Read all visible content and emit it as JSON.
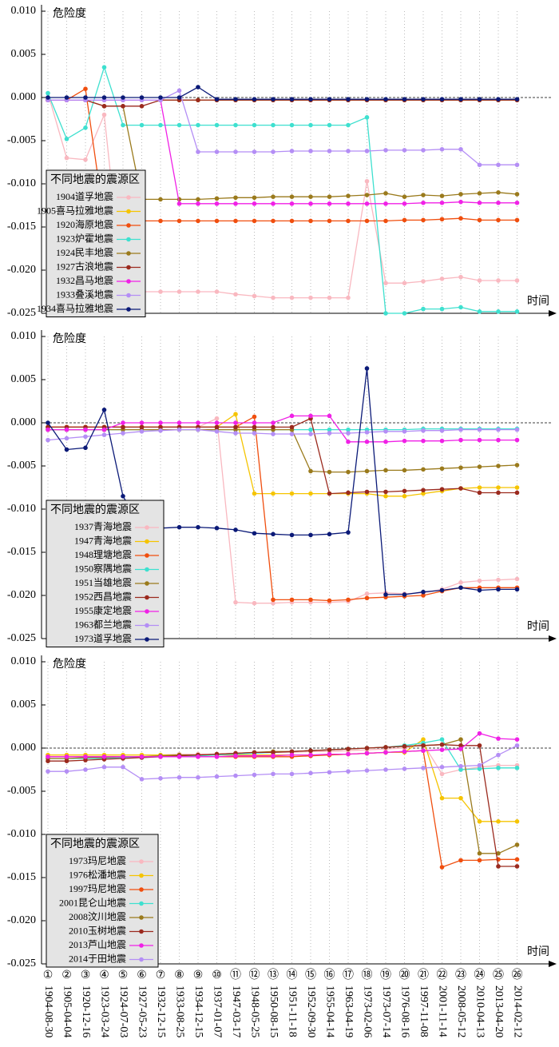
{
  "chart_data": [
    {
      "type": "line",
      "y_label": "危险度",
      "x_label": "时间",
      "legend_title": "不同地震的震源区",
      "ylim": [
        -0.025,
        0.01
      ],
      "yticks": [
        {
          "value": 0.01,
          "label": "0.010"
        },
        0.005,
        {
          "value": 0,
          "label": "0.000"
        },
        -0.005,
        {
          "value": -0.01,
          "label": "-0.010"
        },
        -0.015,
        {
          "value": -0.02,
          "label": "-0.020"
        },
        -0.025
      ],
      "series": [
        {
          "name": "1904道孚地震",
          "color": "#f9b8c0",
          "values": [
            0.0005,
            -0.007,
            -0.0072,
            -0.002,
            -0.0225,
            -0.0225,
            -0.0225,
            -0.0225,
            -0.0225,
            -0.0225,
            -0.0228,
            -0.023,
            -0.0232,
            -0.0232,
            -0.0232,
            -0.0232,
            -0.0232,
            -0.0097,
            -0.0215,
            -0.0215,
            -0.0213,
            -0.021,
            -0.0208,
            -0.0212,
            -0.0212,
            -0.0212
          ]
        },
        {
          "name": "1905喜马拉雅地震",
          "color": "#f5c400",
          "values": [
            -0.0003,
            -0.0003,
            -0.0003,
            -0.0003,
            -0.0003,
            -0.0003,
            -0.0003,
            -0.0003,
            -0.0003,
            -0.0003,
            -0.0003,
            -0.0003,
            -0.0003,
            -0.0003,
            -0.0003,
            -0.0003,
            -0.0003,
            -0.0003,
            -0.0003,
            -0.0003,
            -0.0003,
            -0.0003,
            -0.0003,
            -0.0003,
            -0.0003,
            -0.0003
          ]
        },
        {
          "name": "1920海原地震",
          "color": "#f04e0e",
          "values": [
            -0.0003,
            -0.0003,
            0.001,
            -0.0143,
            -0.0143,
            -0.0143,
            -0.0143,
            -0.0143,
            -0.0143,
            -0.0143,
            -0.0143,
            -0.0143,
            -0.0143,
            -0.0143,
            -0.0143,
            -0.0143,
            -0.0143,
            -0.0143,
            -0.0143,
            -0.0142,
            -0.0142,
            -0.0141,
            -0.014,
            -0.0142,
            -0.0142,
            -0.0142
          ]
        },
        {
          "name": "1923炉霍地震",
          "color": "#3ee0cf",
          "values": [
            0.0005,
            -0.0048,
            -0.0035,
            0.0035,
            -0.0032,
            -0.0032,
            -0.0032,
            -0.0032,
            -0.0032,
            -0.0032,
            -0.0032,
            -0.0032,
            -0.0032,
            -0.0032,
            -0.0032,
            -0.0032,
            -0.0032,
            -0.0023,
            -0.025,
            -0.025,
            -0.0245,
            -0.0245,
            -0.0243,
            -0.0248,
            -0.0248,
            -0.0248
          ]
        },
        {
          "name": "1924民丰地震",
          "color": "#9a7a1c",
          "values": [
            -0.0003,
            -0.0003,
            -0.0003,
            -0.001,
            -0.001,
            -0.0118,
            -0.0118,
            -0.0118,
            -0.0118,
            -0.0117,
            -0.0116,
            -0.0116,
            -0.0115,
            -0.0115,
            -0.0115,
            -0.0115,
            -0.0114,
            -0.0113,
            -0.0111,
            -0.0115,
            -0.0113,
            -0.0114,
            -0.0112,
            -0.0111,
            -0.011,
            -0.0112
          ]
        },
        {
          "name": "1927古浪地震",
          "color": "#9b2a1e",
          "values": [
            -0.0003,
            -0.0003,
            -0.0003,
            -0.001,
            -0.001,
            -0.001,
            -0.0003,
            -0.0003,
            -0.0003,
            -0.0003,
            -0.0003,
            -0.0003,
            -0.0003,
            -0.0003,
            -0.0003,
            -0.0003,
            -0.0003,
            -0.0003,
            -0.0003,
            -0.0003,
            -0.0003,
            -0.0003,
            -0.0003,
            -0.0003,
            -0.0003,
            -0.0003
          ]
        },
        {
          "name": "1932昌马地震",
          "color": "#f021e6",
          "values": [
            -0.0003,
            -0.0003,
            -0.0003,
            -0.0003,
            -0.0003,
            -0.0003,
            -0.0003,
            -0.0123,
            -0.0123,
            -0.0123,
            -0.0123,
            -0.0123,
            -0.0123,
            -0.0123,
            -0.0123,
            -0.0123,
            -0.0123,
            -0.0123,
            -0.0123,
            -0.0123,
            -0.0122,
            -0.0122,
            -0.0121,
            -0.0122,
            -0.0122,
            -0.0122
          ]
        },
        {
          "name": "1933叠溪地震",
          "color": "#b48ef5",
          "values": [
            -0.0003,
            -0.0003,
            -0.0003,
            -0.0003,
            -0.0003,
            -0.0003,
            -0.0003,
            0.0008,
            -0.0063,
            -0.0063,
            -0.0063,
            -0.0063,
            -0.0063,
            -0.0062,
            -0.0062,
            -0.0062,
            -0.0062,
            -0.0062,
            -0.0061,
            -0.0061,
            -0.0061,
            -0.006,
            -0.006,
            -0.0078,
            -0.0078,
            -0.0078
          ]
        },
        {
          "name": "1934喜马拉雅地震",
          "color": "#0b1a78",
          "values": [
            0,
            0,
            0,
            0,
            0,
            0,
            0,
            0,
            0.0012,
            -0.0002,
            -0.0002,
            -0.0002,
            -0.0002,
            -0.0002,
            -0.0002,
            -0.0002,
            -0.0002,
            -0.0002,
            -0.0002,
            -0.0002,
            -0.0002,
            -0.0002,
            -0.0002,
            -0.0002,
            -0.0002,
            -0.0002
          ]
        }
      ]
    },
    {
      "type": "line",
      "y_label": "危险度",
      "x_label": "时间",
      "legend_title": "不同地震的震源区",
      "ylim": [
        -0.025,
        0.01
      ],
      "yticks": [
        {
          "value": 0.01,
          "label": "0.010"
        },
        0.005,
        {
          "value": 0,
          "label": "0.000"
        },
        -0.005,
        {
          "value": -0.01,
          "label": "-0.010"
        },
        -0.015,
        {
          "value": -0.02,
          "label": "-0.020"
        },
        -0.025
      ],
      "series": [
        {
          "name": "1937青海地震",
          "color": "#f9b8c0",
          "values": [
            -0.0005,
            -0.0005,
            -0.0005,
            -0.0005,
            -0.0005,
            -0.0005,
            -0.0005,
            -0.0005,
            -0.0005,
            0.0005,
            -0.0208,
            -0.0209,
            -0.0209,
            -0.0208,
            -0.0208,
            -0.0208,
            -0.0207,
            -0.0198,
            -0.0197,
            -0.0198,
            -0.0197,
            -0.0193,
            -0.0185,
            -0.0183,
            -0.0182,
            -0.0181
          ]
        },
        {
          "name": "1947青海地震",
          "color": "#f5c400",
          "values": [
            -0.0005,
            -0.0005,
            -0.0005,
            -0.0005,
            -0.0005,
            -0.0005,
            -0.0005,
            -0.0005,
            -0.0005,
            -0.0005,
            0.001,
            -0.0082,
            -0.0082,
            -0.0082,
            -0.0082,
            -0.0082,
            -0.0082,
            -0.0082,
            -0.0085,
            -0.0085,
            -0.0082,
            -0.0079,
            -0.0076,
            -0.0075,
            -0.0075,
            -0.0075
          ]
        },
        {
          "name": "1948理塘地震",
          "color": "#f04e0e",
          "values": [
            -0.0005,
            -0.0005,
            -0.0005,
            -0.0005,
            -0.0005,
            -0.0005,
            -0.0005,
            -0.0005,
            -0.0005,
            -0.0005,
            -0.0005,
            0.0007,
            -0.0205,
            -0.0205,
            -0.0205,
            -0.0206,
            -0.0205,
            -0.0203,
            -0.0202,
            -0.0201,
            -0.02,
            -0.0195,
            -0.0191,
            -0.0191,
            -0.0191,
            -0.0191
          ]
        },
        {
          "name": "1950察隅地震",
          "color": "#3ee0cf",
          "values": [
            -0.0008,
            -0.0008,
            -0.0008,
            -0.0008,
            -0.0008,
            -0.0008,
            -0.0008,
            -0.0008,
            -0.0008,
            -0.0008,
            -0.0008,
            -0.0008,
            -0.0008,
            -0.0008,
            -0.0008,
            -0.0008,
            -0.0008,
            -0.0008,
            -0.0008,
            -0.0008,
            -0.0007,
            -0.0007,
            -0.0007,
            -0.0007,
            -0.0007,
            -0.0007
          ]
        },
        {
          "name": "1951当雄地震",
          "color": "#9a7a1c",
          "values": [
            -0.0008,
            -0.0008,
            -0.0008,
            -0.0008,
            -0.0008,
            -0.0008,
            -0.0008,
            -0.0008,
            -0.0008,
            -0.0008,
            -0.0008,
            -0.0008,
            -0.0008,
            -0.0008,
            -0.0056,
            -0.0057,
            -0.0057,
            -0.0056,
            -0.0055,
            -0.0055,
            -0.0054,
            -0.0053,
            -0.0052,
            -0.0051,
            -0.005,
            -0.0049
          ]
        },
        {
          "name": "1952西昌地震",
          "color": "#9b2a1e",
          "values": [
            -0.0005,
            -0.0005,
            -0.0005,
            -0.0005,
            -0.0005,
            -0.0005,
            -0.0005,
            -0.0005,
            -0.0005,
            -0.0005,
            -0.0005,
            -0.0005,
            -0.0005,
            -0.0005,
            0.0005,
            -0.0082,
            -0.0081,
            -0.008,
            -0.008,
            -0.0079,
            -0.0078,
            -0.0077,
            -0.0076,
            -0.0081,
            -0.0081,
            -0.0081
          ]
        },
        {
          "name": "1955康定地震",
          "color": "#f021e6",
          "values": [
            -0.0008,
            -0.0008,
            -0.0008,
            -0.0008,
            0,
            0,
            0,
            0,
            0,
            0,
            0,
            0,
            0,
            0.0008,
            0.0008,
            0.0008,
            -0.0022,
            -0.0022,
            -0.0022,
            -0.0021,
            -0.0021,
            -0.0021,
            -0.002,
            -0.002,
            -0.002,
            -0.002
          ]
        },
        {
          "name": "1963都兰地震",
          "color": "#b48ef5",
          "values": [
            -0.002,
            -0.0018,
            -0.0016,
            -0.0014,
            -0.0012,
            -0.001,
            -0.0009,
            -0.0008,
            -0.0008,
            -0.001,
            -0.0012,
            -0.0012,
            -0.0013,
            -0.0013,
            -0.0013,
            -0.0012,
            -0.0012,
            -0.0011,
            -0.001,
            -0.001,
            -0.0009,
            -0.0009,
            -0.0008,
            -0.0008,
            -0.0008,
            -0.0008
          ]
        },
        {
          "name": "1973道孚地震",
          "color": "#0b1a78",
          "values": [
            0,
            -0.0031,
            -0.0029,
            0.0015,
            -0.0085,
            -0.0122,
            -0.0122,
            -0.0121,
            -0.0121,
            -0.0122,
            -0.0124,
            -0.0128,
            -0.0129,
            -0.013,
            -0.013,
            -0.0129,
            -0.0127,
            0.0063,
            -0.0199,
            -0.0199,
            -0.0196,
            -0.0194,
            -0.0191,
            -0.0194,
            -0.0193,
            -0.0193
          ]
        }
      ]
    },
    {
      "type": "line",
      "y_label": "危险度",
      "x_label": "时间",
      "legend_title": "不同地震的震源区",
      "ylim": [
        -0.025,
        0.01
      ],
      "yticks": [
        {
          "value": 0.01,
          "label": "0.010"
        },
        0.005,
        {
          "value": 0,
          "label": "0.000"
        },
        -0.005,
        {
          "value": -0.01,
          "label": "-0.010"
        },
        -0.015,
        {
          "value": -0.02,
          "label": "-0.020"
        },
        -0.025
      ],
      "category_markers": [
        "①",
        "②",
        "③",
        "④",
        "⑤",
        "⑥",
        "⑦",
        "⑧",
        "⑨",
        "⑩",
        "⑪",
        "⑫",
        "⑬",
        "⑭",
        "⑮",
        "⑯",
        "⑰",
        "⑱",
        "⑲",
        "⑳",
        "㉑",
        "㉒",
        "㉓",
        "㉔",
        "㉕",
        "㉖"
      ],
      "categories": [
        "1904-08-30",
        "1905-04-04",
        "1920-12-16",
        "1923-03-24",
        "1924-07-03",
        "1927-05-23",
        "1932-12-15",
        "1933-08-25",
        "1934-12-15",
        "1937-01-07",
        "1947-03-17",
        "1948-05-25",
        "1950-08-15",
        "1951-11-18",
        "1952-09-30",
        "1955-04-14",
        "1963-04-19",
        "1973-02-06",
        "1973-07-14",
        "1976-08-16",
        "1997-11-08",
        "2001-11-14",
        "2008-05-12",
        "2010-04-13",
        "2013-04-20",
        "2014-02-12"
      ],
      "series": [
        {
          "name": "1973玛尼地震",
          "color": "#f9b8c0",
          "values": [
            -0.0008,
            -0.0008,
            -0.0008,
            -0.0008,
            -0.0008,
            -0.0008,
            -0.0008,
            -0.0007,
            -0.0007,
            -0.0007,
            -0.0006,
            -0.0006,
            -0.0005,
            -0.0005,
            -0.0004,
            -0.0004,
            -0.0003,
            -0.0002,
            -0.0001,
            0,
            0.0005,
            -0.003,
            -0.0025,
            -0.0022,
            -0.002,
            -0.002
          ]
        },
        {
          "name": "1976松潘地震",
          "color": "#f5c400",
          "values": [
            -0.0008,
            -0.0008,
            -0.0008,
            -0.0008,
            -0.0008,
            -0.0008,
            -0.0008,
            -0.0008,
            -0.0008,
            -0.0008,
            -0.0008,
            -0.0008,
            -0.0008,
            -0.0008,
            -0.0008,
            -0.0008,
            -0.0007,
            -0.0006,
            -0.0005,
            -0.0005,
            0.001,
            -0.0058,
            -0.0058,
            -0.0085,
            -0.0085,
            -0.0085
          ]
        },
        {
          "name": "1997玛尼地震",
          "color": "#f04e0e",
          "values": [
            -0.001,
            -0.001,
            -0.001,
            -0.001,
            -0.001,
            -0.001,
            -0.001,
            -0.001,
            -0.001,
            -0.001,
            -0.001,
            -0.001,
            -0.001,
            -0.001,
            -0.0009,
            -0.0008,
            -0.0007,
            -0.0006,
            -0.0005,
            -0.0004,
            -0.0003,
            -0.0138,
            -0.013,
            -0.013,
            -0.0129,
            -0.0129
          ]
        },
        {
          "name": "2001昆仑山地震",
          "color": "#3ee0cf",
          "values": [
            -0.0012,
            -0.0012,
            -0.0012,
            -0.0012,
            -0.0011,
            -0.0011,
            -0.001,
            -0.001,
            -0.0009,
            -0.0008,
            -0.0007,
            -0.0006,
            -0.0005,
            -0.0004,
            -0.0003,
            -0.0002,
            -0.0001,
            0,
            0.0001,
            0.0003,
            0.0006,
            0.001,
            -0.0025,
            -0.0024,
            -0.0023,
            -0.0023
          ]
        },
        {
          "name": "2008汶川地震",
          "color": "#9a7a1c",
          "values": [
            -0.0012,
            -0.0012,
            -0.0011,
            -0.0011,
            -0.001,
            -0.001,
            -0.0009,
            -0.0008,
            -0.0008,
            -0.0007,
            -0.0006,
            -0.0005,
            -0.0004,
            -0.0004,
            -0.0003,
            -0.0002,
            -0.0001,
            0,
            0.0001,
            0.0002,
            0.0003,
            0.0004,
            0.001,
            -0.0122,
            -0.0122,
            -0.0112
          ]
        },
        {
          "name": "2010玉树地震",
          "color": "#9b2a1e",
          "values": [
            -0.0015,
            -0.0015,
            -0.0014,
            -0.0013,
            -0.0012,
            -0.0011,
            -0.001,
            -0.0009,
            -0.0008,
            -0.0007,
            -0.0006,
            -0.0005,
            -0.0005,
            -0.0004,
            -0.0003,
            -0.0002,
            -0.0001,
            0,
            0.0001,
            0.0002,
            0.0003,
            0.0004,
            0.0003,
            0.0003,
            -0.0137,
            -0.0137
          ]
        },
        {
          "name": "2013芦山地震",
          "color": "#f021e6",
          "values": [
            -0.001,
            -0.001,
            -0.001,
            -0.001,
            -0.001,
            -0.001,
            -0.001,
            -0.001,
            -0.001,
            -0.001,
            -0.0009,
            -0.0009,
            -0.0009,
            -0.0008,
            -0.0008,
            -0.0007,
            -0.0007,
            -0.0006,
            -0.0005,
            -0.0004,
            -0.0003,
            -0.0002,
            -0.0001,
            0.0017,
            0.0011,
            0.001
          ]
        },
        {
          "name": "2014于田地震",
          "color": "#b48ef5",
          "values": [
            -0.0027,
            -0.0027,
            -0.0025,
            -0.0022,
            -0.0022,
            -0.0036,
            -0.0035,
            -0.0034,
            -0.0034,
            -0.0033,
            -0.0032,
            -0.0031,
            -0.003,
            -0.003,
            -0.0029,
            -0.0028,
            -0.0027,
            -0.0026,
            -0.0025,
            -0.0024,
            -0.0023,
            -0.0022,
            -0.0021,
            -0.002,
            -0.0008,
            0.0003
          ]
        }
      ]
    }
  ]
}
